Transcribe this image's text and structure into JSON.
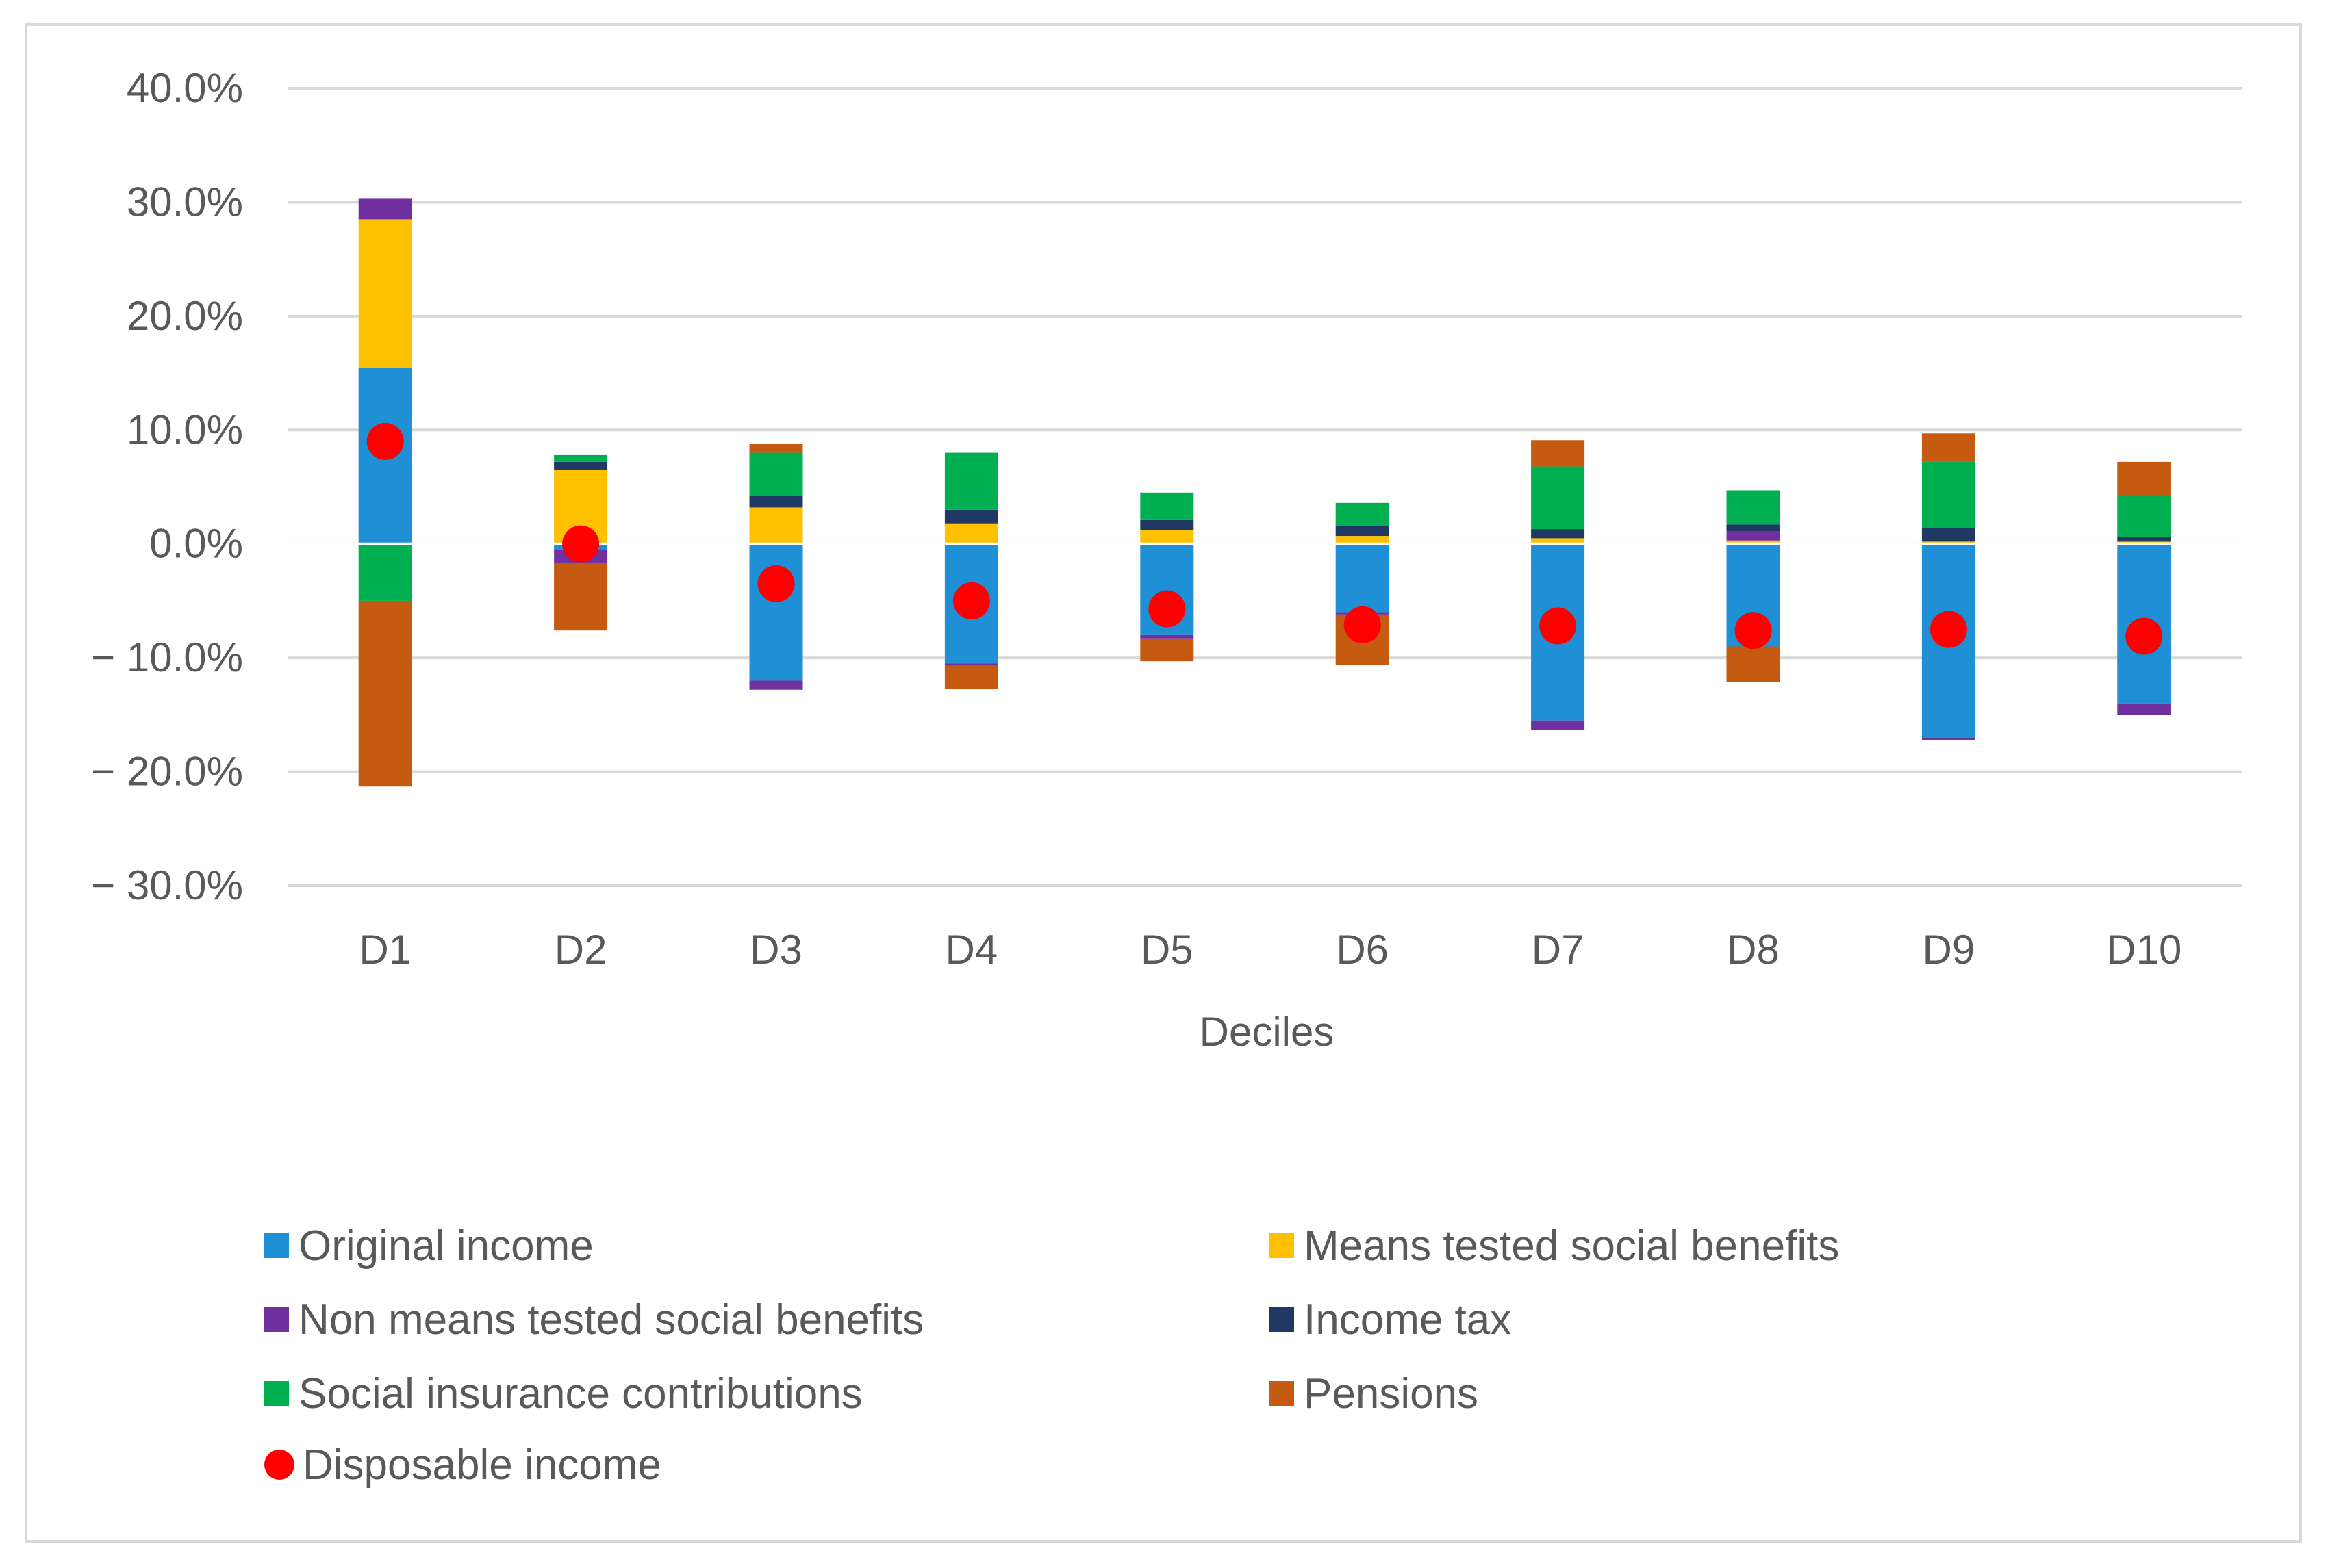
{
  "chart_data": {
    "type": "bar",
    "subtype": "stacked-bar-with-markers",
    "title": "",
    "xlabel": "Deciles",
    "ylabel": "",
    "ylim": [
      -30,
      40
    ],
    "y_ticks": [
      40,
      30,
      20,
      10,
      0,
      -10,
      -20,
      -30
    ],
    "y_tick_labels": [
      "40.0%",
      "30.0%",
      "20.0%",
      "10.0%",
      "0.0%",
      "− 10.0%",
      "− 20.0%",
      "− 30.0%"
    ],
    "grid": true,
    "legend_position": "bottom",
    "categories": [
      "D1",
      "D2",
      "D3",
      "D4",
      "D5",
      "D6",
      "D7",
      "D8",
      "D9",
      "D10"
    ],
    "series": [
      {
        "name": "Original income",
        "color": "#1f8fd6",
        "values": [
          15.5,
          -0.5,
          -12.0,
          -10.5,
          -8.0,
          -6.0,
          -15.5,
          -9.0,
          -17.0,
          -14.0
        ]
      },
      {
        "name": "Means tested social benefits",
        "color": "#ffc000",
        "values": [
          13.0,
          6.5,
          3.2,
          1.8,
          1.2,
          0.7,
          0.5,
          0.3,
          0.2,
          0.2
        ]
      },
      {
        "name": "Non means tested social benefits",
        "color": "#7030a0",
        "values": [
          1.8,
          -1.2,
          -0.8,
          -0.2,
          -0.3,
          -0.2,
          -0.8,
          0.8,
          -0.2,
          -1.0
        ]
      },
      {
        "name": "Income tax",
        "color": "#203864",
        "values": [
          0.0,
          0.7,
          1.0,
          1.2,
          0.9,
          0.9,
          0.8,
          0.6,
          1.2,
          0.4
        ]
      },
      {
        "name": "Social insurance contributions",
        "color": "#00b050",
        "values": [
          -5.0,
          0.6,
          3.8,
          5.0,
          2.4,
          2.0,
          5.5,
          3.0,
          5.8,
          3.6
        ]
      },
      {
        "name": "Pensions",
        "color": "#c55a11",
        "values": [
          -16.3,
          -5.9,
          0.8,
          -2.0,
          -2.0,
          -4.4,
          2.3,
          -3.1,
          2.5,
          3.0
        ]
      }
    ],
    "markers": {
      "name": "Disposable income",
      "color": "#ff0000",
      "values": [
        9.0,
        0.0,
        -3.5,
        -5.0,
        -5.7,
        -7.1,
        -7.2,
        -7.6,
        -7.5,
        -8.1
      ]
    }
  },
  "legend": {
    "items": [
      {
        "label": "Original income",
        "color": "#1f8fd6",
        "shape": "square"
      },
      {
        "label": "Means tested social benefits",
        "color": "#ffc000",
        "shape": "square"
      },
      {
        "label": "Non means tested social benefits",
        "color": "#7030a0",
        "shape": "square"
      },
      {
        "label": "Income tax",
        "color": "#203864",
        "shape": "square"
      },
      {
        "label": "Social insurance contributions",
        "color": "#00b050",
        "shape": "square"
      },
      {
        "label": "Pensions",
        "color": "#c55a11",
        "shape": "square"
      },
      {
        "label": "Disposable income",
        "color": "#ff0000",
        "shape": "circle"
      }
    ]
  },
  "colors": {
    "grid": "#d9d9d9",
    "text": "#595959",
    "frame": "#d9d9d9",
    "zero_line": "#ffffff"
  }
}
